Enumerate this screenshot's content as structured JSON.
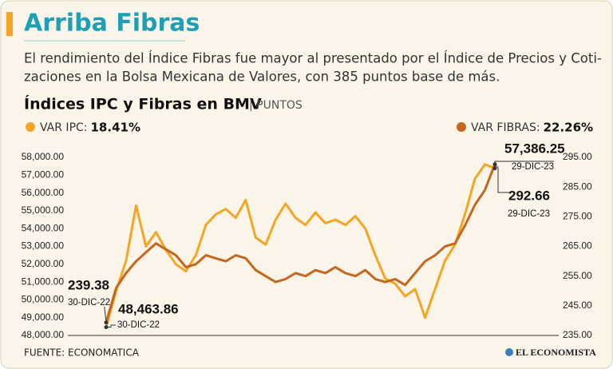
{
  "header": {
    "title": "Arriba Fibras",
    "subtitle": [
      "El rendimiento del Índice Fibras fue mayor al presentado por el Índice de Precios y Coti-",
      "zaciones en la Bolsa Mexicana de Valores, con 385 puntos base de más."
    ]
  },
  "chart_data": {
    "type": "line",
    "title": "Índices IPC y Fibras en BMV",
    "unit": "| PUNTOS",
    "ylim": [
      48000,
      58000
    ],
    "yticks": [
      {
        "value": 48000,
        "label": "48,000.00"
      },
      {
        "value": 49000,
        "label": "49,000.00"
      },
      {
        "value": 50000,
        "label": "50,000.00"
      },
      {
        "value": 51000,
        "label": "51,000.00"
      },
      {
        "value": 52000,
        "label": "52,000.00"
      },
      {
        "value": 53000,
        "label": "53,000.00"
      },
      {
        "value": 54000,
        "label": "54,000.00"
      },
      {
        "value": 55000,
        "label": "55,000.00"
      },
      {
        "value": 56000,
        "label": "56,000.00"
      },
      {
        "value": 57000,
        "label": "57,000.00"
      },
      {
        "value": 58000,
        "label": "58,000.00"
      }
    ],
    "y2lim": [
      235,
      295
    ],
    "y2ticks": [
      {
        "value": 235,
        "label": "235.00"
      },
      {
        "value": 245,
        "label": "245.00"
      },
      {
        "value": 255,
        "label": "255.00"
      },
      {
        "value": 265,
        "label": "265.00"
      },
      {
        "value": 275,
        "label": "275.00"
      },
      {
        "value": 285,
        "label": "285.00"
      },
      {
        "value": 295,
        "label": "295.00"
      }
    ],
    "series": [
      {
        "name": "VAR IPC:",
        "change_label": "18.41%",
        "color": "#f5a524",
        "start_label": "48,463.86",
        "start_date": "30-DIC-22",
        "end_label": "57,386.25",
        "end_date": "29-DIC-23",
        "values": [
          48463.86,
          50500,
          52200,
          55300,
          53000,
          53800,
          52800,
          52000,
          51600,
          52500,
          54200,
          54800,
          55100,
          54600,
          55600,
          53500,
          53100,
          54500,
          55400,
          54600,
          54200,
          54900,
          54300,
          54500,
          54200,
          54700,
          54000,
          52500,
          51200,
          50900,
          50200,
          50600,
          49000,
          50600,
          52200,
          53100,
          54800,
          56800,
          57600,
          57386.25
        ]
      },
      {
        "name": "VAR FIBRAS:",
        "change_label": "22.26%",
        "color": "#c4671d",
        "axis": "y2",
        "start_label": "239.38",
        "start_date": "30-DIC-22",
        "end_label": "292.66",
        "end_date": "29-DIC-23",
        "values": [
          239.38,
          251,
          256,
          260,
          263,
          266,
          264,
          262,
          258,
          259,
          262,
          261,
          260,
          262,
          261,
          257,
          255,
          253,
          254,
          256,
          255,
          257,
          256,
          258,
          256,
          255,
          257,
          254,
          253,
          254,
          252,
          256,
          260,
          262,
          265,
          266,
          272,
          279,
          284,
          292.66
        ]
      }
    ],
    "source": "FUENTE: ECONOMATICA",
    "brand": "EL ECONOMISTA"
  }
}
